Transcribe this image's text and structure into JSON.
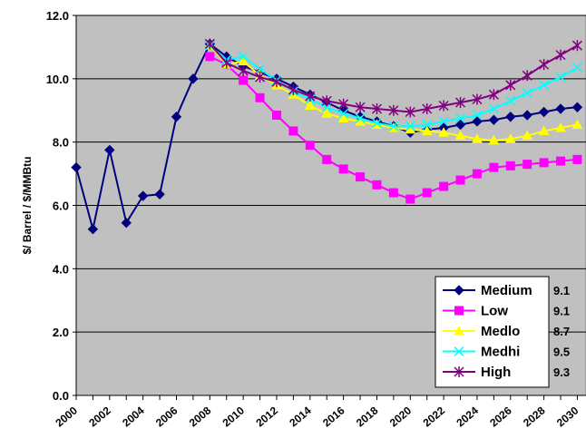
{
  "chart_data": {
    "type": "line",
    "title": "",
    "xlabel": "",
    "ylabel": "$/ Barrel / $/MMBtu",
    "ylim": [
      0,
      12
    ],
    "xlim": [
      2000,
      2030
    ],
    "y_ticks": [
      "0.0",
      "2.0",
      "4.0",
      "6.0",
      "8.0",
      "10.0",
      "12.0"
    ],
    "x_ticks": [
      "2000",
      "2002",
      "2004",
      "2006",
      "2008",
      "2010",
      "2012",
      "2014",
      "2016",
      "2018",
      "2020",
      "2022",
      "2024",
      "2026",
      "2028",
      "2030"
    ],
    "grid": "horizontal",
    "plot_background": "#c0c0c0",
    "legend_position": "bottom-right",
    "legend_values": [
      "9.1",
      "9.1",
      "8.7",
      "9.5",
      "9.3"
    ],
    "series": [
      {
        "name": "Medium",
        "color": "#000080",
        "marker": "diamond",
        "x": [
          2000,
          2001,
          2002,
          2003,
          2004,
          2005,
          2006,
          2007,
          2008,
          2009,
          2010,
          2011,
          2012,
          2013,
          2014,
          2015,
          2016,
          2017,
          2018,
          2019,
          2020,
          2021,
          2022,
          2023,
          2024,
          2025,
          2026,
          2027,
          2028,
          2029,
          2030
        ],
        "y": [
          7.2,
          5.25,
          7.75,
          5.45,
          6.3,
          6.35,
          8.8,
          10.0,
          11.1,
          10.7,
          10.4,
          10.2,
          10.0,
          9.75,
          9.5,
          9.25,
          9.0,
          8.8,
          8.65,
          8.5,
          8.3,
          8.4,
          8.45,
          8.55,
          8.65,
          8.7,
          8.8,
          8.85,
          8.95,
          9.05,
          9.1
        ]
      },
      {
        "name": "Low",
        "color": "#ff00ff",
        "marker": "square",
        "x": [
          2008,
          2009,
          2010,
          2011,
          2012,
          2013,
          2014,
          2015,
          2016,
          2017,
          2018,
          2019,
          2020,
          2021,
          2022,
          2023,
          2024,
          2025,
          2026,
          2027,
          2028,
          2029,
          2030
        ],
        "y": [
          10.7,
          10.45,
          9.95,
          9.4,
          8.85,
          8.35,
          7.9,
          7.45,
          7.15,
          6.9,
          6.65,
          6.4,
          6.2,
          6.4,
          6.6,
          6.8,
          7.0,
          7.2,
          7.25,
          7.3,
          7.35,
          7.4,
          7.45
        ]
      },
      {
        "name": "Medlo",
        "color": "#ffff00",
        "marker": "triangle",
        "x": [
          2008,
          2009,
          2010,
          2011,
          2012,
          2013,
          2014,
          2015,
          2016,
          2017,
          2018,
          2019,
          2020,
          2021,
          2022,
          2023,
          2024,
          2025,
          2026,
          2027,
          2028,
          2029,
          2030
        ],
        "y": [
          11.05,
          10.45,
          10.55,
          10.1,
          9.8,
          9.5,
          9.15,
          8.9,
          8.75,
          8.65,
          8.55,
          8.45,
          8.4,
          8.35,
          8.3,
          8.2,
          8.1,
          8.05,
          8.1,
          8.2,
          8.35,
          8.45,
          8.55
        ]
      },
      {
        "name": "Medhi",
        "color": "#00ffff",
        "marker": "x",
        "x": [
          2008,
          2009,
          2010,
          2011,
          2012,
          2013,
          2014,
          2015,
          2016,
          2017,
          2018,
          2019,
          2020,
          2021,
          2022,
          2023,
          2024,
          2025,
          2026,
          2027,
          2028,
          2029,
          2030
        ],
        "y": [
          11.05,
          10.6,
          10.7,
          10.3,
          9.95,
          9.6,
          9.35,
          9.1,
          8.9,
          8.75,
          8.6,
          8.5,
          8.5,
          8.55,
          8.65,
          8.75,
          8.85,
          9.05,
          9.3,
          9.55,
          9.8,
          10.05,
          10.35
        ]
      },
      {
        "name": "High",
        "color": "#800080",
        "marker": "star",
        "x": [
          2008,
          2009,
          2010,
          2011,
          2012,
          2013,
          2014,
          2015,
          2016,
          2017,
          2018,
          2019,
          2020,
          2021,
          2022,
          2023,
          2024,
          2025,
          2026,
          2027,
          2028,
          2029,
          2030
        ],
        "y": [
          11.1,
          10.5,
          10.25,
          10.05,
          9.9,
          9.65,
          9.45,
          9.3,
          9.2,
          9.1,
          9.05,
          9.0,
          8.95,
          9.05,
          9.15,
          9.25,
          9.35,
          9.5,
          9.8,
          10.1,
          10.45,
          10.75,
          11.05
        ]
      }
    ]
  }
}
